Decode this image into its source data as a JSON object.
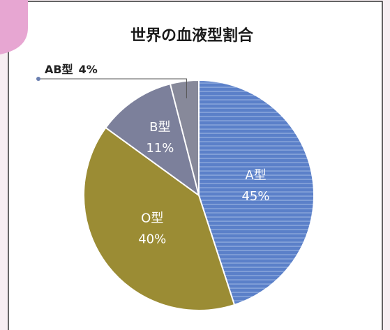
{
  "chart_data": {
    "type": "pie",
    "title": "世界の血液型割合",
    "categories": [
      "A型",
      "O型",
      "B型",
      "AB型"
    ],
    "values": [
      45,
      40,
      11,
      4
    ],
    "value_labels": [
      "45%",
      "40%",
      "11%",
      "4%"
    ],
    "colors": [
      "url(#stripes)",
      "#9b8c34",
      "#7c809b",
      "#87899a"
    ]
  }
}
